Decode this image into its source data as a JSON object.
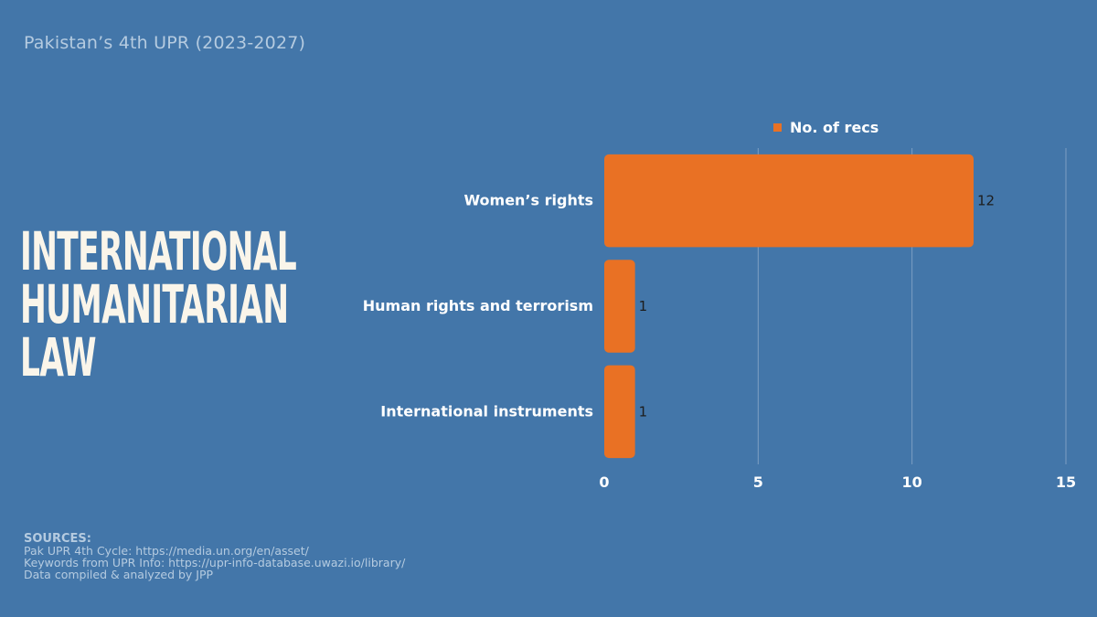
{
  "header": {
    "subtitle": "Pakistan’s 4th UPR (2023-2027)"
  },
  "title_lines": [
    "INTERNATIONAL",
    "HUMANITARIAN",
    "LAW"
  ],
  "sources": {
    "heading": "SOURCES:",
    "lines": [
      "Pak UPR 4th Cycle: https://media.un.org/en/asset/",
      "Keywords from UPR Info: https://upr-info-database.uwazi.io/library/",
      "Data compiled & analyzed by JPP"
    ]
  },
  "colors": {
    "background": "#4376a9",
    "bar": "#e97124",
    "grid": "#7d9fc3"
  },
  "chart_data": {
    "type": "bar",
    "orientation": "horizontal",
    "categories": [
      "Women’s rights",
      "Human rights and terrorism",
      "International instruments"
    ],
    "series": [
      {
        "name": "No. of recs",
        "values": [
          12,
          1,
          1
        ]
      }
    ],
    "data_labels": [
      "12",
      "1",
      "1"
    ],
    "xlim": [
      0,
      15
    ],
    "xticks": [
      0,
      5,
      10,
      15
    ],
    "tick_labels": [
      "0",
      "5",
      "10",
      "15"
    ],
    "grid": "vertical",
    "legend_position": "top"
  }
}
